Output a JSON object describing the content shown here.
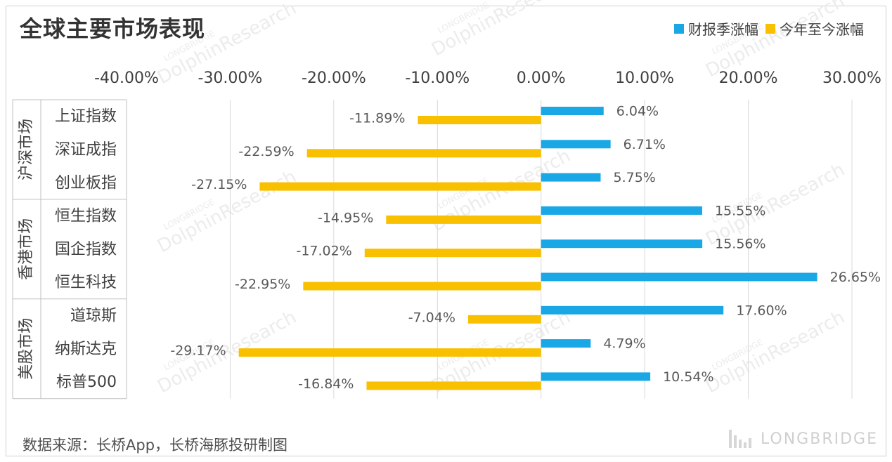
{
  "header": {
    "title": "全球主要市场表现"
  },
  "legend": {
    "items": [
      {
        "label": "财报季涨幅",
        "color": "#1aa7e6"
      },
      {
        "label": "今年至今涨幅",
        "color": "#f9c000"
      }
    ]
  },
  "footer": {
    "source": "数据来源：长桥App，长桥海豚投研制图",
    "brand": "LONGBRIDGE"
  },
  "watermark": {
    "text": "DolphinResearch",
    "sub": "LONGBRIDGE"
  },
  "chart_data": {
    "type": "bar",
    "orientation": "horizontal",
    "title": "全球主要市场表现",
    "xlim": [
      -40,
      30
    ],
    "x_ticks": [
      "-40.00%",
      "-30.00%",
      "-20.00%",
      "-10.00%",
      "0.00%",
      "10.00%",
      "20.00%",
      "30.00%"
    ],
    "x_tick_values": [
      -40,
      -30,
      -20,
      -10,
      0,
      10,
      20,
      30
    ],
    "grid": true,
    "legend_position": "top-right",
    "groups": [
      {
        "name": "沪深市场",
        "categories": [
          "上证指数",
          "深证成指",
          "创业板指"
        ]
      },
      {
        "name": "香港市场",
        "categories": [
          "恒生指数",
          "国企指数",
          "恒生科技"
        ]
      },
      {
        "name": "美股市场",
        "categories": [
          "道琼斯",
          "纳斯达克",
          "标普500"
        ]
      }
    ],
    "categories": [
      "上证指数",
      "深证成指",
      "创业板指",
      "恒生指数",
      "国企指数",
      "恒生科技",
      "道琼斯",
      "纳斯达克",
      "标普500"
    ],
    "series": [
      {
        "name": "财报季涨幅",
        "color": "#1aa7e6",
        "values": [
          6.04,
          6.71,
          5.75,
          15.55,
          15.56,
          26.65,
          17.6,
          4.79,
          10.54
        ],
        "labels": [
          "6.04%",
          "6.71%",
          "5.75%",
          "15.55%",
          "15.56%",
          "26.65%",
          "17.60%",
          "4.79%",
          "10.54%"
        ]
      },
      {
        "name": "今年至今涨幅",
        "color": "#f9c000",
        "values": [
          -11.89,
          -22.59,
          -27.15,
          -14.95,
          -17.02,
          -22.95,
          -7.04,
          -29.17,
          -16.84
        ],
        "labels": [
          "-11.89%",
          "-22.59%",
          "-27.15%",
          "-14.95%",
          "-17.02%",
          "-22.95%",
          "-7.04%",
          "-29.17%",
          "-16.84%"
        ]
      }
    ]
  }
}
